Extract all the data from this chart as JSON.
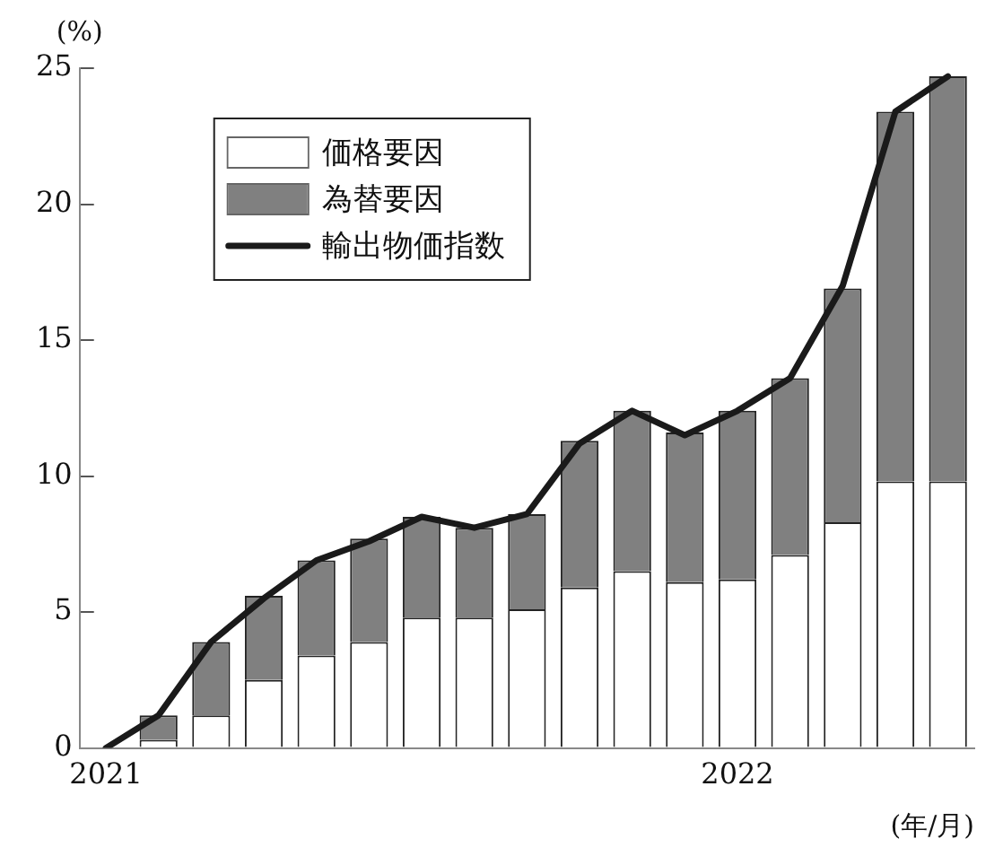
{
  "chart_data": {
    "type": "bar",
    "stacked": true,
    "ylabel": "(%)",
    "xlabel": "(年/月)",
    "categories": [
      "2021",
      null,
      null,
      null,
      null,
      null,
      null,
      null,
      null,
      null,
      null,
      null,
      "2022",
      null,
      null,
      null,
      null
    ],
    "series": [
      {
        "name": "価格要因",
        "color": "#ffffff",
        "values": [
          null,
          0.3,
          1.2,
          2.5,
          3.4,
          3.9,
          4.8,
          4.8,
          5.1,
          5.9,
          6.5,
          6.1,
          6.2,
          7.1,
          8.3,
          9.8,
          9.8
        ]
      },
      {
        "name": "為替要因",
        "color": "#808080",
        "values": [
          null,
          0.9,
          2.7,
          3.1,
          3.5,
          3.8,
          3.7,
          3.3,
          3.5,
          5.4,
          5.9,
          5.5,
          6.2,
          6.5,
          8.6,
          13.6,
          14.9
        ]
      },
      {
        "name": "輸出物価指数",
        "type": "line",
        "color": "#1a1a1a",
        "values": [
          0,
          1.2,
          3.9,
          5.5,
          6.9,
          7.6,
          8.5,
          8.1,
          8.6,
          11.2,
          12.4,
          11.5,
          12.4,
          13.6,
          17.0,
          23.4,
          24.7
        ]
      }
    ],
    "ylim": [
      0,
      25
    ],
    "yticks": [
      0,
      5,
      10,
      15,
      20,
      25
    ],
    "grid": false,
    "legend": "top left",
    "marker": "none",
    "line_style": "solid"
  }
}
